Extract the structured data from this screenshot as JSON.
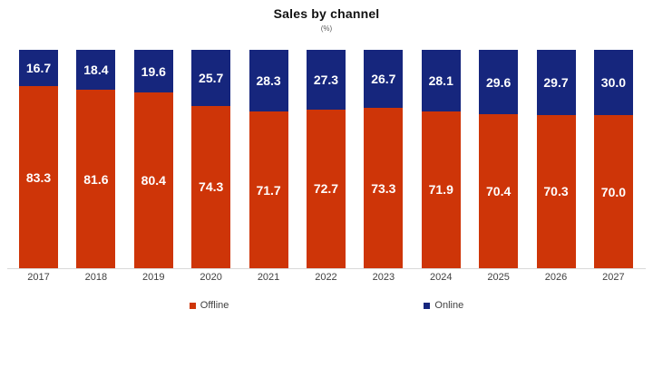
{
  "chart_data": {
    "type": "bar",
    "stacked": true,
    "title": "Sales by channel",
    "subtitle": "(%)",
    "categories": [
      "2017",
      "2018",
      "2019",
      "2020",
      "2021",
      "2022",
      "2023",
      "2024",
      "2025",
      "2026",
      "2027"
    ],
    "series": [
      {
        "name": "Offline",
        "color": "#ce3508",
        "values": [
          83.3,
          81.6,
          80.4,
          74.3,
          71.7,
          72.7,
          73.3,
          71.9,
          70.4,
          70.3,
          70.0
        ]
      },
      {
        "name": "Online",
        "color": "#16267d",
        "values": [
          16.7,
          18.4,
          19.6,
          25.7,
          28.3,
          27.3,
          26.7,
          28.1,
          29.6,
          29.7,
          30.0
        ]
      }
    ],
    "ylim": [
      0,
      100
    ],
    "grid": false,
    "legend_position": "bottom",
    "value_label_color": "#ffffff",
    "axis_label_color": "#404040"
  }
}
